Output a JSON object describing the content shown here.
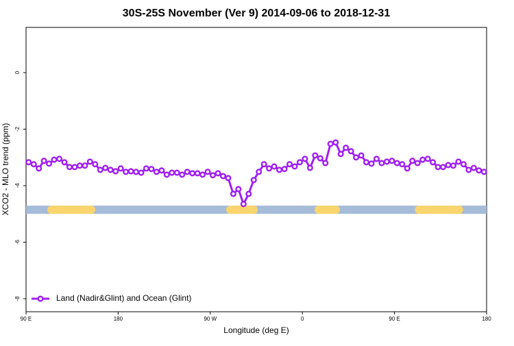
{
  "chart_data": {
    "type": "line",
    "title": "30S-25S November (Ver 9)   2014-09-06 to 2018-12-31",
    "x_label": "Longitude (deg E)",
    "y_label": "XCO2 - MLO trend (ppm)",
    "xlim": [
      90,
      540
    ],
    "xticks": [
      {
        "value": 90,
        "label": "90 E"
      },
      180,
      {
        "value": 270,
        "label": "90 W"
      },
      {
        "value": 360,
        "label": "0"
      },
      {
        "value": 450,
        "label": "90 E"
      },
      {
        "value": 540,
        "label": "180"
      }
    ],
    "ylim": [
      -8.46,
      1.6
    ],
    "yticks": [
      0,
      -2,
      -4,
      -6,
      -8
    ],
    "legend": "bottom-left",
    "x": [
      92.5,
      97.5,
      102.5,
      107.5,
      112.5,
      117.5,
      122.5,
      127.5,
      132.5,
      137.5,
      142.5,
      147.5,
      152.5,
      157.5,
      162.5,
      167.5,
      172.5,
      177.5,
      182.5,
      187.5,
      192.5,
      197.5,
      202.5,
      207.5,
      212.5,
      217.5,
      222.5,
      227.5,
      232.5,
      237.5,
      242.5,
      247.5,
      252.5,
      257.5,
      262.5,
      267.5,
      272.5,
      277.5,
      282.5,
      287.5,
      292.5,
      297.5,
      302.5,
      307.5,
      312.5,
      317.5,
      322.5,
      327.5,
      332.5,
      337.5,
      342.5,
      347.5,
      352.5,
      357.5,
      362.5,
      367.5,
      372.5,
      377.5,
      382.5,
      387.5,
      392.5,
      397.5,
      402.5,
      407.5,
      412.5,
      417.5,
      422.5,
      427.5,
      432.5,
      437.5,
      442.5,
      447.5,
      452.5,
      457.5,
      462.5,
      467.5,
      472.5,
      477.5,
      482.5,
      487.5,
      492.5,
      497.5,
      502.5,
      507.5,
      512.5,
      517.5,
      522.5,
      527.5,
      532.5,
      537.5
    ],
    "series": [
      {
        "name": "Land (Nadir&Glint) and Ocean (Glint)",
        "color": "#a020f0",
        "values": [
          -3.17,
          -3.24,
          -3.39,
          -3.12,
          -3.22,
          -3.08,
          -3.05,
          -3.17,
          -3.34,
          -3.34,
          -3.29,
          -3.29,
          -3.15,
          -3.24,
          -3.44,
          -3.37,
          -3.44,
          -3.49,
          -3.39,
          -3.51,
          -3.49,
          -3.51,
          -3.54,
          -3.39,
          -3.41,
          -3.51,
          -3.46,
          -3.61,
          -3.54,
          -3.54,
          -3.61,
          -3.51,
          -3.56,
          -3.56,
          -3.61,
          -3.51,
          -3.63,
          -3.56,
          -3.66,
          -3.73,
          -4.29,
          -4.12,
          -4.65,
          -4.29,
          -3.8,
          -3.51,
          -3.24,
          -3.39,
          -3.32,
          -3.44,
          -3.41,
          -3.24,
          -3.32,
          -3.17,
          -3.05,
          -3.37,
          -2.93,
          -3.03,
          -3.2,
          -2.52,
          -2.47,
          -2.88,
          -2.66,
          -2.78,
          -3.0,
          -2.93,
          -3.17,
          -3.22,
          -3.05,
          -3.2,
          -3.15,
          -3.12,
          -3.2,
          -3.24,
          -3.39,
          -3.12,
          -3.2,
          -3.08,
          -3.05,
          -3.17,
          -3.34,
          -3.34,
          -3.27,
          -3.29,
          -3.15,
          -3.24,
          -3.44,
          -3.37,
          -3.46,
          -3.51
        ]
      }
    ],
    "surface_band": {
      "y": -4.85,
      "ocean_color": "#a5bcd9",
      "land_color": "#fad56e",
      "land": [
        [
          114.8,
          153.6
        ],
        [
          289.6,
          312.3
        ],
        [
          376,
          392.7
        ],
        [
          474,
          513
        ]
      ]
    }
  }
}
